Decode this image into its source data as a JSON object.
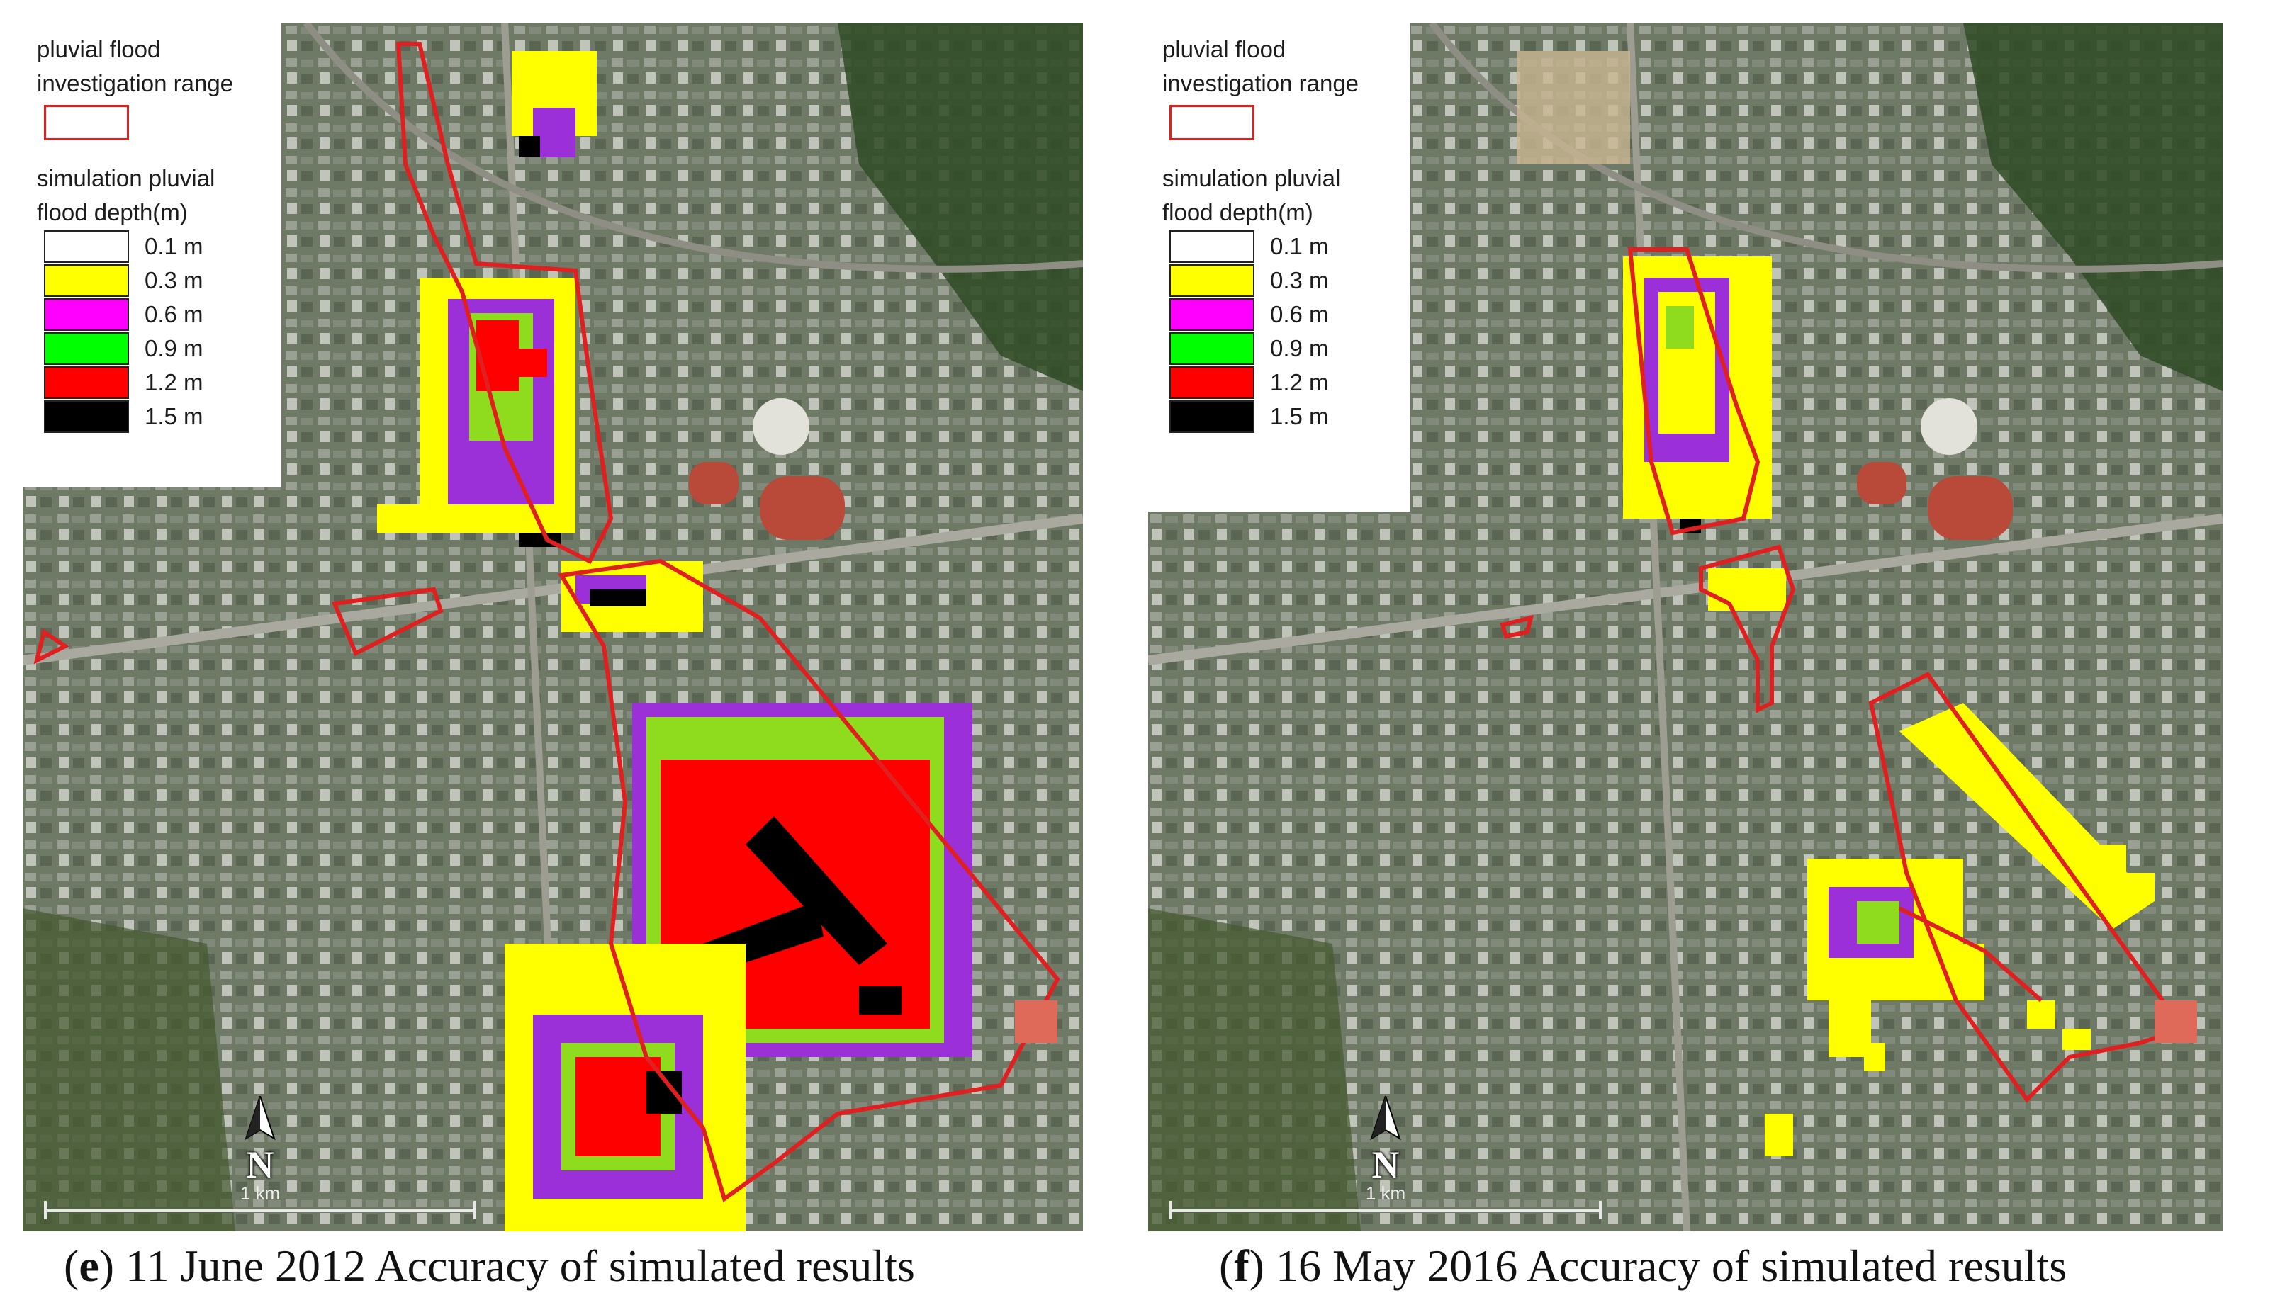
{
  "legend": {
    "range_title": "pluvial flood investigation range",
    "depth_title": "simulation pluvial flood depth(m)",
    "items": [
      {
        "label": "0.1 m",
        "color": "#ffffff"
      },
      {
        "label": "0.3 m",
        "color": "#ffff00"
      },
      {
        "label": "0.6 m",
        "color": "#ff00ff"
      },
      {
        "label": "0.9 m",
        "color": "#00ff00"
      },
      {
        "label": "1.2 m",
        "color": "#ff0000"
      },
      {
        "label": "1.5 m",
        "color": "#000000"
      }
    ],
    "range_color": "#e02020"
  },
  "north_label": "N",
  "scale_label": "1 km",
  "captions": {
    "e": {
      "letter": "e",
      "text": "11 June 2012 Accuracy of simulated results"
    },
    "f": {
      "letter": "f",
      "text": "16 May 2016 Accuracy of simulated results"
    }
  },
  "flood_colors": {
    "shallow": "#ffff00",
    "mid": "#9b2fd8",
    "green": "#8fdc1e",
    "deep": "#ff0000",
    "deepest": "#000000"
  }
}
